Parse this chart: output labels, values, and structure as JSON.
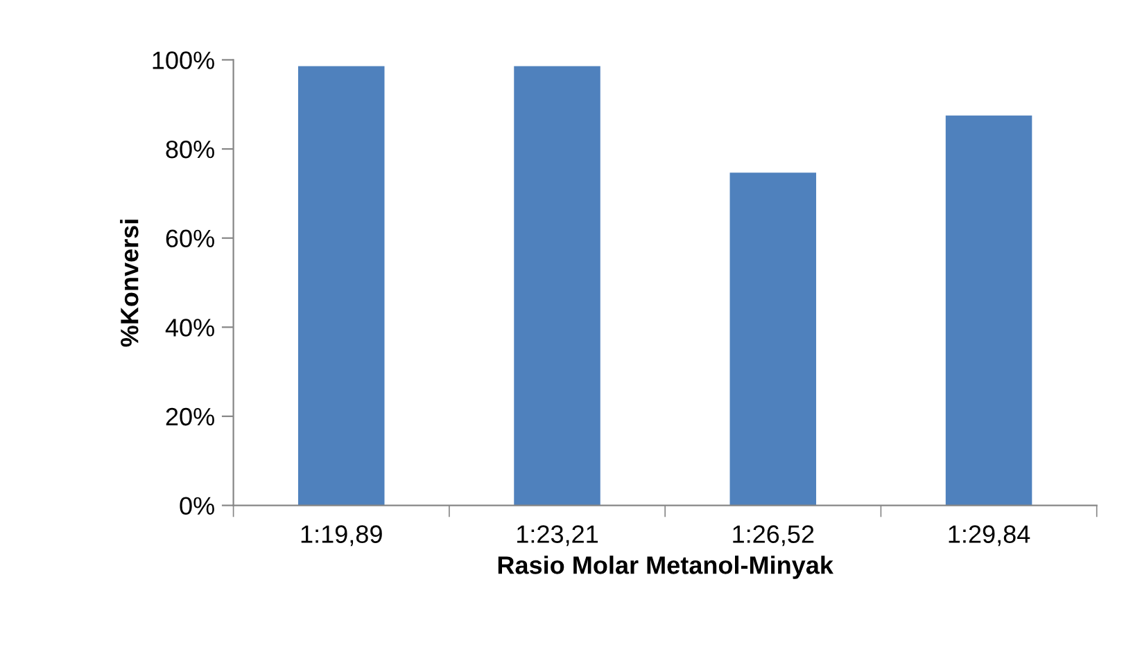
{
  "chart_data": {
    "type": "bar",
    "xlabel": "Rasio Molar Metanol-Minyak",
    "ylabel": "%Konversi",
    "categories": [
      "1:19,89",
      "1:23,21",
      "1:26,52",
      "1:29,84"
    ],
    "values": [
      98.6,
      98.6,
      74.7,
      87.5
    ],
    "color": "#4f81bd",
    "ylim": [
      0,
      100
    ],
    "yticks": [
      {
        "value": 0,
        "label": "0%"
      },
      {
        "value": 20,
        "label": "20%"
      },
      {
        "value": 40,
        "label": "40%"
      },
      {
        "value": 60,
        "label": "60%"
      },
      {
        "value": 80,
        "label": "80%"
      },
      {
        "value": 100,
        "label": "100%"
      }
    ],
    "grid": false,
    "legend": false
  }
}
